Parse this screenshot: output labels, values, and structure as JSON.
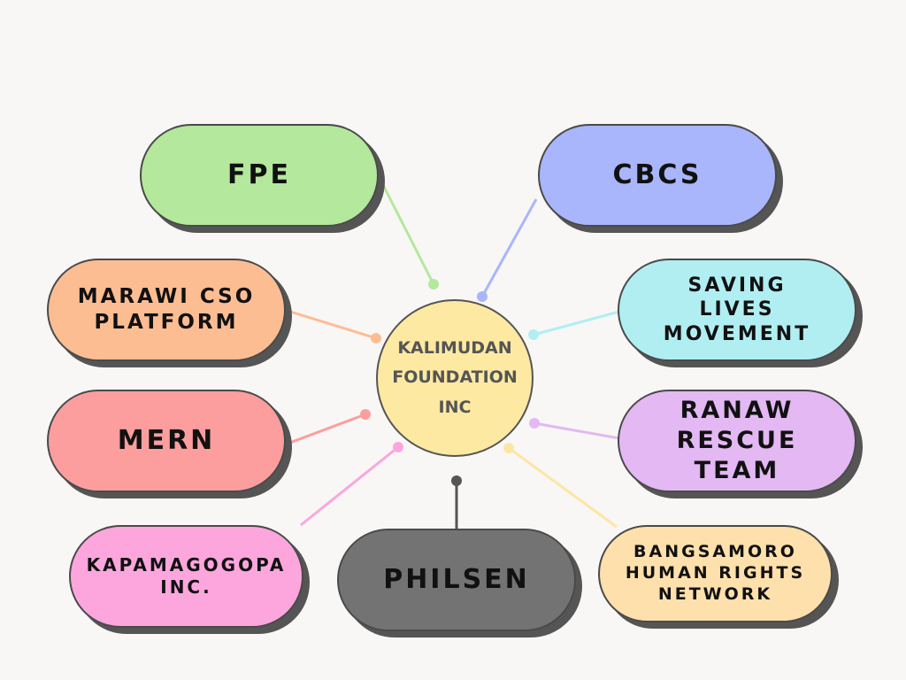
{
  "center": {
    "label": "KALIMUDAN\nFOUNDATION\nINC",
    "color": "#fde9a2"
  },
  "nodes": [
    {
      "id": "fpe",
      "label": "FPE",
      "color": "#b4e89c",
      "connector": "#b4e89c"
    },
    {
      "id": "cbcs",
      "label": "CBCS",
      "color": "#a9b6fb",
      "connector": "#a9b6fb"
    },
    {
      "id": "marawi",
      "label": "MARAWI CSO\nPLATFORM",
      "color": "#fdbd92",
      "connector": "#fdbd92"
    },
    {
      "id": "saving",
      "label": "SAVING\nLIVES\nMOVEMENT",
      "color": "#b0eef2",
      "connector": "#b0eef2"
    },
    {
      "id": "mern",
      "label": "MERN",
      "color": "#fc9e9e",
      "connector": "#fc9e9e"
    },
    {
      "id": "ranaw",
      "label": "RANAW\nRESCUE\nTEAM",
      "color": "#e3b8f3",
      "connector": "#e3b8f3"
    },
    {
      "id": "kapamagogopa",
      "label": "KAPAMAGOGOPA\nINC.",
      "color": "#fca6dd",
      "connector": "#fca6dd"
    },
    {
      "id": "philsen",
      "label": "PHILSEN",
      "color": "#737373",
      "connector": "#555555"
    },
    {
      "id": "bangsamoro",
      "label": "BANGSAMORO\nHUMAN RIGHTS\nNETWORK",
      "color": "#fde0ab",
      "connector": "#fde6a4"
    }
  ]
}
